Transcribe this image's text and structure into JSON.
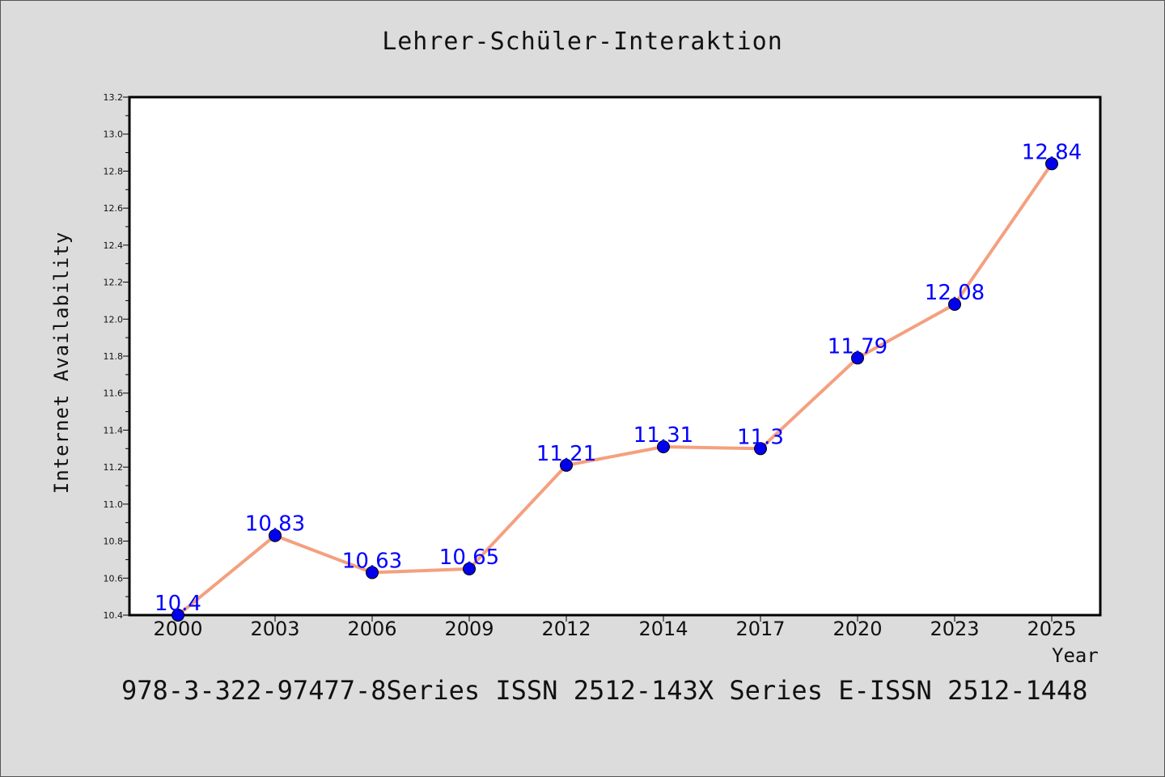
{
  "chart_data": {
    "type": "line",
    "title": "Lehrer-Schüler-Interaktion",
    "xlabel": "Year",
    "ylabel": "Internet Availability",
    "categories": [
      "2000",
      "2003",
      "2006",
      "2009",
      "2012",
      "2014",
      "2017",
      "2020",
      "2023",
      "2025"
    ],
    "series": [
      {
        "values": [
          10.4,
          10.83,
          10.63,
          10.65,
          11.21,
          11.31,
          11.3,
          11.79,
          12.08,
          12.84
        ],
        "labels": [
          "10.4",
          "10.83",
          "10.63",
          "10.65",
          "11.21",
          "11.31",
          "11.3",
          "11.79",
          "12.08",
          "12.84"
        ],
        "line_color": "#f4a07f",
        "marker_color": "#0000ee"
      }
    ],
    "ylim": [
      10.4,
      13.2
    ],
    "yticks": [
      "10.4",
      "10.6",
      "10.8",
      "11.0",
      "11.2",
      "11.4",
      "11.6",
      "11.8",
      "12.0",
      "12.2",
      "12.4",
      "12.6",
      "12.8",
      "13.0",
      "13.2"
    ],
    "grid": false,
    "legend": "none"
  },
  "footer_text": "978-3-322-97477-8Series ISSN 2512-143X Series E-ISSN 2512-1448"
}
